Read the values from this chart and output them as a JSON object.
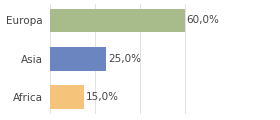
{
  "categories": [
    "Africa",
    "Asia",
    "Europa"
  ],
  "values": [
    15.0,
    25.0,
    60.0
  ],
  "bar_colors": [
    "#f5c47a",
    "#6b85c0",
    "#a8bb8a"
  ],
  "labels": [
    "15,0%",
    "25,0%",
    "60,0%"
  ],
  "xlim": [
    0,
    80
  ],
  "background_color": "#ffffff",
  "label_fontsize": 7.5,
  "tick_fontsize": 7.5,
  "bar_height": 0.62
}
